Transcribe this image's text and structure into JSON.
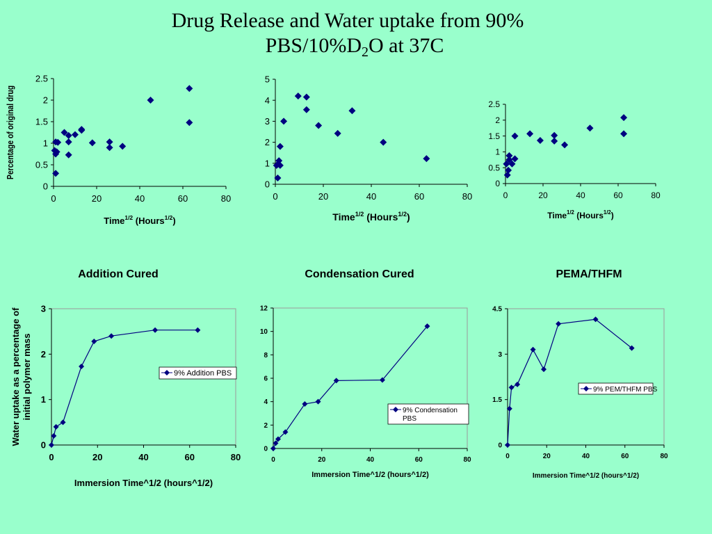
{
  "title": {
    "line1": "Drug Release and Water uptake from 90%",
    "line2_pre": "PBS/10%D",
    "line2_sub": "2",
    "line2_post": "O at 37C"
  },
  "colors": {
    "background": "#99ffcc",
    "marker": "#000080",
    "line": "#000080"
  },
  "chart_data": [
    {
      "type": "scatter",
      "ylabel": "Percentage of original drug",
      "xlabel": {
        "base": "Time",
        "sup1": "1/2",
        "mid": " (Hours",
        "sup2": "1/2",
        "end": ")"
      },
      "xlim": [
        0,
        80
      ],
      "ylim": [
        0,
        2.5
      ],
      "xticks": [
        0,
        20,
        40,
        60,
        80
      ],
      "yticks": [
        "0",
        "0.5",
        "1",
        "1.5",
        "2",
        "2.5"
      ],
      "points": [
        [
          1,
          0.3
        ],
        [
          0.5,
          0.83
        ],
        [
          1,
          1.03
        ],
        [
          2,
          1.02
        ],
        [
          1.5,
          0.8
        ],
        [
          1,
          0.75
        ],
        [
          5,
          1.25
        ],
        [
          7,
          1.18
        ],
        [
          7,
          1.03
        ],
        [
          7,
          0.73
        ],
        [
          10,
          1.2
        ],
        [
          13,
          1.32
        ],
        [
          13,
          1.3
        ],
        [
          18,
          1.01
        ],
        [
          26,
          1.03
        ],
        [
          26,
          0.9
        ],
        [
          32,
          0.93
        ],
        [
          45,
          2.0
        ],
        [
          63,
          2.27
        ],
        [
          63,
          1.48
        ]
      ]
    },
    {
      "type": "scatter",
      "xlabel": {
        "base": "Time",
        "sup1": "1/2",
        "mid": " (Hours",
        "sup2": "1/2",
        "end": ")"
      },
      "xlim": [
        0,
        80
      ],
      "ylim": [
        0,
        5
      ],
      "xticks": [
        0,
        20,
        40,
        60,
        80
      ],
      "yticks": [
        "0",
        "1",
        "2",
        "3",
        "4",
        "5"
      ],
      "points": [
        [
          1,
          0.3
        ],
        [
          0.5,
          0.9
        ],
        [
          1,
          0.95
        ],
        [
          2,
          0.9
        ],
        [
          1.5,
          1.12
        ],
        [
          2,
          1.8
        ],
        [
          3.5,
          3.0
        ],
        [
          9.5,
          4.2
        ],
        [
          13,
          4.15
        ],
        [
          13,
          3.55
        ],
        [
          18,
          2.8
        ],
        [
          26,
          2.42
        ],
        [
          32,
          3.5
        ],
        [
          45,
          2.0
        ],
        [
          63,
          1.22
        ]
      ]
    },
    {
      "type": "scatter",
      "xlabel": {
        "base": "Time",
        "sup1": "1/2",
        "mid": " (Hours",
        "sup2": "1/2",
        "end": ")"
      },
      "xlim": [
        0,
        80
      ],
      "ylim": [
        0,
        2.5
      ],
      "xticks": [
        0,
        20,
        40,
        60,
        80
      ],
      "yticks": [
        "0",
        "0.5",
        "1",
        "1.5",
        "2",
        "2.5"
      ],
      "points": [
        [
          1,
          0.27
        ],
        [
          1.5,
          0.42
        ],
        [
          0.5,
          0.62
        ],
        [
          2,
          0.75
        ],
        [
          2,
          0.88
        ],
        [
          3.5,
          0.62
        ],
        [
          5,
          0.78
        ],
        [
          5,
          1.5
        ],
        [
          13,
          1.57
        ],
        [
          18.5,
          1.36
        ],
        [
          26,
          1.52
        ],
        [
          26,
          1.34
        ],
        [
          31.5,
          1.22
        ],
        [
          45,
          1.75
        ],
        [
          63,
          2.08
        ],
        [
          63,
          1.57
        ]
      ]
    },
    {
      "type": "line",
      "title": "Addition Cured",
      "ylabel": [
        "Water uptake as a percentage of",
        "initial polymer mass"
      ],
      "xlabel": "Immersion Time^1/2 (hours^1/2)",
      "legend": "9% Addition PBS",
      "xlim": [
        0,
        80
      ],
      "ylim": [
        0,
        3
      ],
      "xticks": [
        0,
        20,
        40,
        60,
        80
      ],
      "yticks": [
        "0",
        "1",
        "2",
        "3"
      ],
      "series": [
        {
          "name": "9% Addition PBS",
          "x": [
            0,
            1,
            2,
            5,
            13,
            18.5,
            26,
            45,
            63.5
          ],
          "y": [
            0,
            0.2,
            0.4,
            0.5,
            1.73,
            2.28,
            2.4,
            2.53,
            2.53
          ]
        }
      ]
    },
    {
      "type": "line",
      "title": "Condensation Cured",
      "xlabel": "Immersion Time^1/2 (hours^1/2)",
      "legend": [
        "9% Condensation",
        "PBS"
      ],
      "xlim": [
        0,
        80
      ],
      "ylim": [
        0,
        12
      ],
      "xticks": [
        0,
        20,
        40,
        60,
        80
      ],
      "yticks": [
        "0",
        "2",
        "4",
        "6",
        "8",
        "10",
        "12"
      ],
      "series": [
        {
          "name": "9% Condensation PBS",
          "x": [
            0,
            1,
            2,
            5,
            13,
            18.5,
            26,
            45,
            63.5
          ],
          "y": [
            0,
            0.45,
            0.8,
            1.4,
            3.8,
            4.0,
            5.8,
            5.85,
            10.45
          ]
        }
      ]
    },
    {
      "type": "line",
      "title": "PEMA/THFM",
      "xlabel": "Immersion Time^1/2 (hours^1/2)",
      "legend": "9% PEM/THFM PBS",
      "xlim": [
        0,
        80
      ],
      "ylim": [
        0,
        4.5
      ],
      "xticks": [
        0,
        20,
        40,
        60,
        80
      ],
      "yticks": [
        "0",
        "1.5",
        "3",
        "4.5"
      ],
      "series": [
        {
          "name": "9% PEM/THFM PBS",
          "x": [
            0,
            1,
            2,
            5,
            13,
            18.5,
            26,
            45,
            63.5
          ],
          "y": [
            0,
            1.2,
            1.9,
            2.0,
            3.15,
            2.5,
            4.0,
            4.15,
            3.2
          ]
        }
      ]
    }
  ]
}
